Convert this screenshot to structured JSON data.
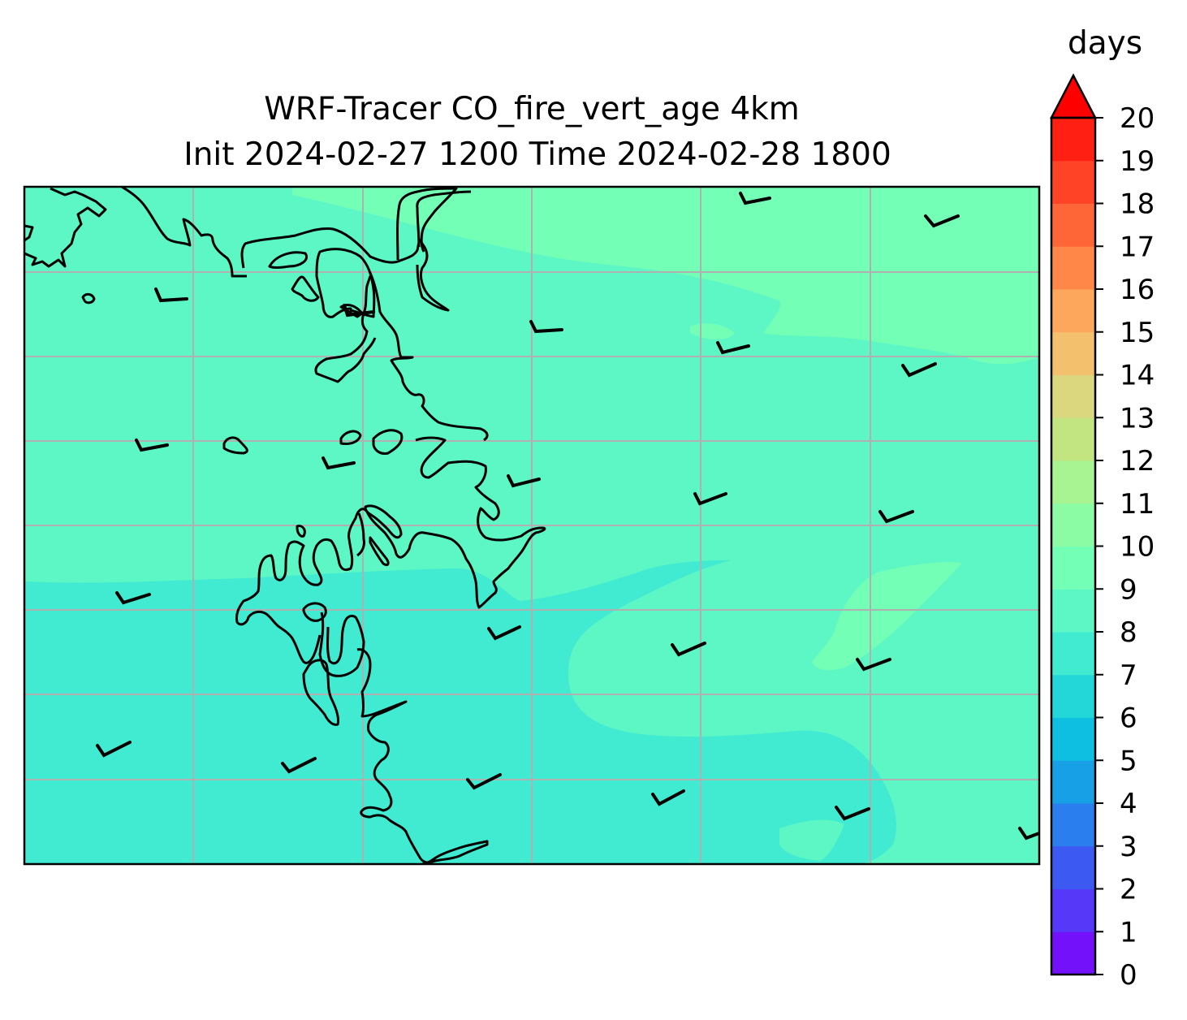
{
  "map": {
    "title_line1": "WRF-Tracer CO_fire_vert_age 4km",
    "title_line2": "Init 2024-02-27 1200 Time 2024-02-28 1800",
    "colorbar_unit": "days",
    "colorbar_ticks": [
      "0",
      "1",
      "2",
      "3",
      "4",
      "5",
      "6",
      "7",
      "8",
      "9",
      "10",
      "11",
      "12",
      "13",
      "14",
      "15",
      "16",
      "17",
      "18",
      "19",
      "20"
    ],
    "colorbar_colors": [
      "#7411fb",
      "#5538f8",
      "#3c59f2",
      "#2a7eee",
      "#17a0e6",
      "#0ebfe1",
      "#23d6d8",
      "#40ebd2",
      "#5cf7c4",
      "#74ffb6",
      "#8cfca4",
      "#a8f493",
      "#c2e582",
      "#dbd77f",
      "#f3c06e",
      "#fda75c",
      "#ff8848",
      "#ff6637",
      "#ff4327",
      "#ff1f13"
    ],
    "colorbar_extend_color": "#ff0000",
    "field_colors": {
      "band_7_8": "#40ebd2",
      "band_8_9": "#5cf7c4",
      "band_9_10": "#74ffb6"
    },
    "gridline_color": "#b0b0b0",
    "coastline_color": "#000000",
    "barb_color": "#000000"
  }
}
